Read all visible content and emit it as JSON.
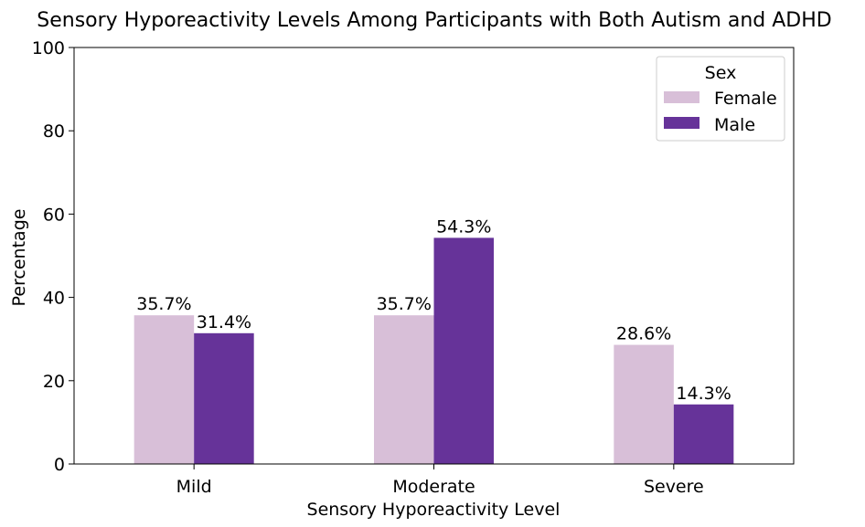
{
  "chart_data": {
    "type": "bar",
    "title": "Sensory Hyporeactivity Levels Among Participants with Both Autism and ADHD",
    "xlabel": "Sensory Hyporeactivity Level",
    "ylabel": "Percentage",
    "ylim": [
      0,
      100
    ],
    "yticks": [
      "0",
      "20",
      "40",
      "60",
      "80",
      "100"
    ],
    "categories": [
      "Mild",
      "Moderate",
      "Severe"
    ],
    "series": [
      {
        "name": "Female",
        "color": "#d8bfd8",
        "values": [
          35.7,
          35.7,
          28.6
        ],
        "labels": [
          "35.7%",
          "35.7%",
          "28.6%"
        ]
      },
      {
        "name": "Male",
        "color": "#663399",
        "values": [
          31.4,
          54.3,
          14.3
        ],
        "labels": [
          "31.4%",
          "54.3%",
          "14.3%"
        ]
      }
    ],
    "legend": {
      "title": "Sex",
      "placement": "top-right"
    },
    "grid": false
  }
}
